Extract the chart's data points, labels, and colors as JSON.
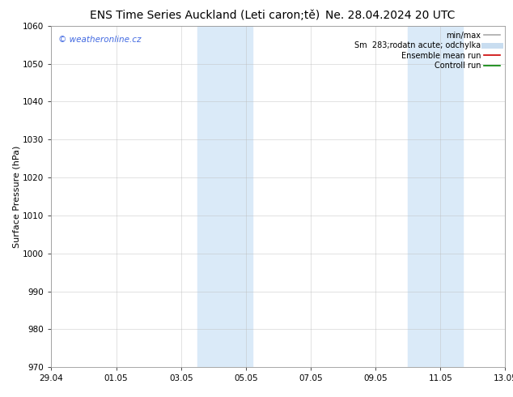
{
  "title_left": "ENS Time Series Auckland (Leti caron;tě)",
  "title_right": "Ne. 28.04.2024 20 UTC",
  "ylabel": "Surface Pressure (hPa)",
  "ylim": [
    970,
    1060
  ],
  "yticks": [
    970,
    980,
    990,
    1000,
    1010,
    1020,
    1030,
    1040,
    1050,
    1060
  ],
  "xtick_labels": [
    "29.04",
    "01.05",
    "03.05",
    "05.05",
    "07.05",
    "09.05",
    "11.05",
    "13.05"
  ],
  "xtick_positions": [
    0,
    2,
    4,
    6,
    8,
    10,
    12,
    14
  ],
  "shaded_regions": [
    {
      "x_start": 4.5,
      "x_end": 6.2
    },
    {
      "x_start": 11.0,
      "x_end": 12.7
    }
  ],
  "shaded_color": "#daeaf8",
  "background_color": "#ffffff",
  "plot_bg_color": "#ffffff",
  "watermark_text": "© weatheronline.cz",
  "watermark_color": "#4169e1",
  "legend_entries": [
    {
      "label": "min/max",
      "color": "#aaaaaa",
      "lw": 1.2
    },
    {
      "label": "Sm  283;rodatn acute; odchylka",
      "color": "#c8ddf0",
      "lw": 5
    },
    {
      "label": "Ensemble mean run",
      "color": "#cc0000",
      "lw": 1.2
    },
    {
      "label": "Controll run",
      "color": "#008000",
      "lw": 1.2
    }
  ],
  "grid_color": "#bbbbbb",
  "grid_alpha": 0.6,
  "title_fontsize": 10,
  "label_fontsize": 8,
  "tick_fontsize": 7.5,
  "legend_fontsize": 7
}
